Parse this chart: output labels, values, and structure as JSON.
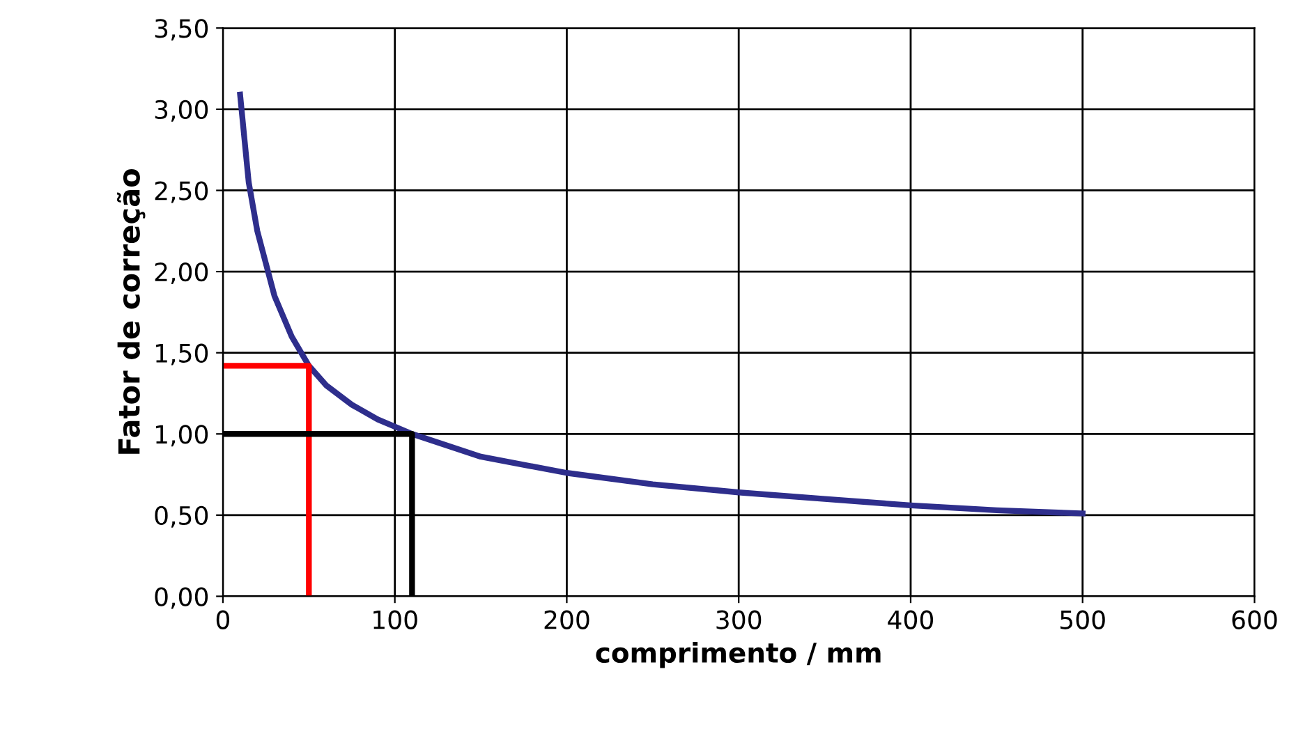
{
  "chart_data": {
    "type": "line",
    "xlabel": "comprimento / mm",
    "ylabel": "Fator de correção",
    "xlim": [
      0,
      600
    ],
    "xticks": [
      0,
      100,
      200,
      300,
      400,
      500,
      600
    ],
    "ylim": [
      0,
      3.5
    ],
    "yticks": [
      {
        "value": 0,
        "label": "0,00"
      },
      {
        "value": 0.5,
        "label": "0,50"
      },
      {
        "value": 1.0,
        "label": "1,00"
      },
      {
        "value": 1.5,
        "label": "1,50"
      },
      {
        "value": 2.0,
        "label": "2,00"
      },
      {
        "value": 2.5,
        "label": "2,50"
      },
      {
        "value": 3.0,
        "label": "3,00"
      },
      {
        "value": 3.5,
        "label": "3,50"
      }
    ],
    "grid": true,
    "legend": false,
    "series": [
      {
        "color": "#2e2e8c",
        "x": [
          10,
          15,
          20,
          30,
          40,
          50,
          60,
          75,
          90,
          110,
          150,
          200,
          250,
          300,
          350,
          400,
          450,
          500
        ],
        "values": [
          3.09,
          2.55,
          2.25,
          1.85,
          1.6,
          1.42,
          1.3,
          1.18,
          1.09,
          1.0,
          0.86,
          0.76,
          0.69,
          0.64,
          0.6,
          0.56,
          0.53,
          0.51
        ]
      },
      {
        "color": "#ff0000",
        "x": [
          0,
          50,
          50
        ],
        "values": [
          1.42,
          1.42,
          0
        ]
      },
      {
        "color": "#000000",
        "x": [
          0,
          110,
          110
        ],
        "values": [
          1.0,
          1.0,
          0
        ]
      }
    ]
  }
}
